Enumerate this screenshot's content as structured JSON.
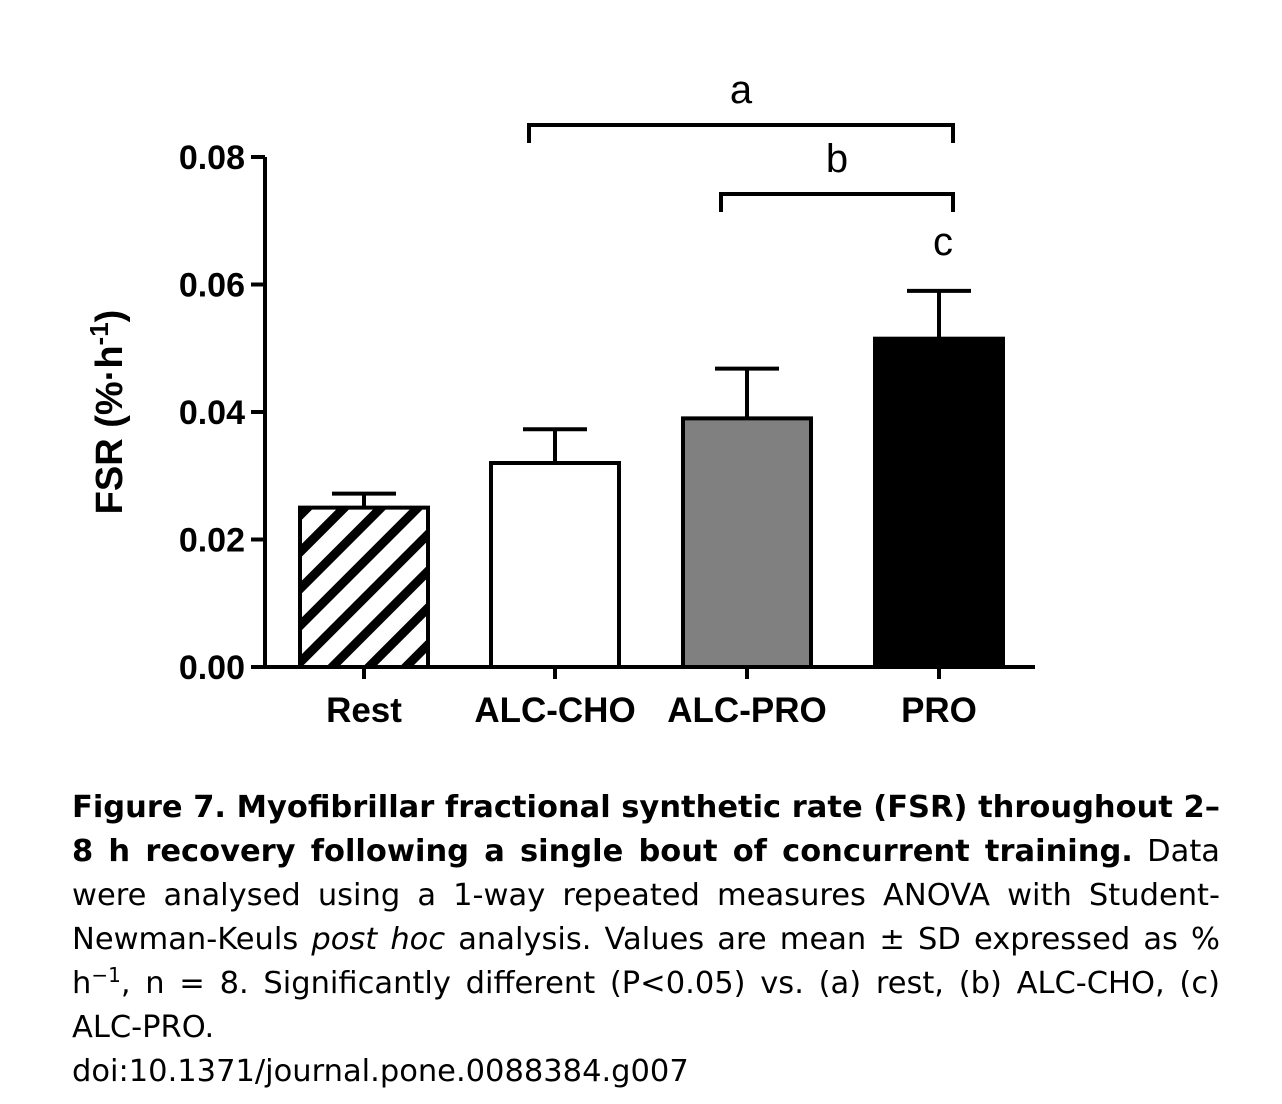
{
  "chart_data": {
    "type": "bar",
    "categories": [
      "Rest",
      "ALC-CHO",
      "ALC-PRO",
      "PRO"
    ],
    "values": [
      0.025,
      0.032,
      0.039,
      0.0515
    ],
    "errors": [
      0.0022,
      0.0053,
      0.0078,
      0.0075
    ],
    "fills": [
      "hatched",
      "#ffffff",
      "#808080",
      "#000000"
    ],
    "ylabel": "FSR (%·h",
    "ylabel_sup": "-1",
    "ylabel_close": ")",
    "ylim": [
      0,
      0.08
    ],
    "yticks": [
      "0.00",
      "0.02",
      "0.04",
      "0.06",
      "0.08"
    ],
    "yticks_values": [
      0,
      0.02,
      0.04,
      0.06,
      0.08
    ],
    "annotations": [
      {
        "label": "a",
        "from": "ALC-CHO",
        "to": "PRO"
      },
      {
        "label": "b",
        "from": "ALC-PRO",
        "to": "PRO"
      },
      {
        "label": "c",
        "over": "PRO"
      }
    ]
  },
  "caption": {
    "title": "Figure 7. Myofibrillar fractional synthetic rate (FSR) throughout 2–8 h recovery following a single bout of concurrent training.",
    "text_1": "Data were analysed using a 1-way repeated measures ANOVA with Student-Newman-Keuls",
    "text_italic": "post hoc",
    "text_2": "analysis. Values are mean ± SD expressed as % h",
    "text_sup": "−1",
    "text_3": ", n = 8. Significantly different (P<0.05) vs. (a) rest, (b) ALC-CHO, (c) ALC-PRO.",
    "doi": "doi:10.1371/journal.pone.0088384.g007"
  }
}
